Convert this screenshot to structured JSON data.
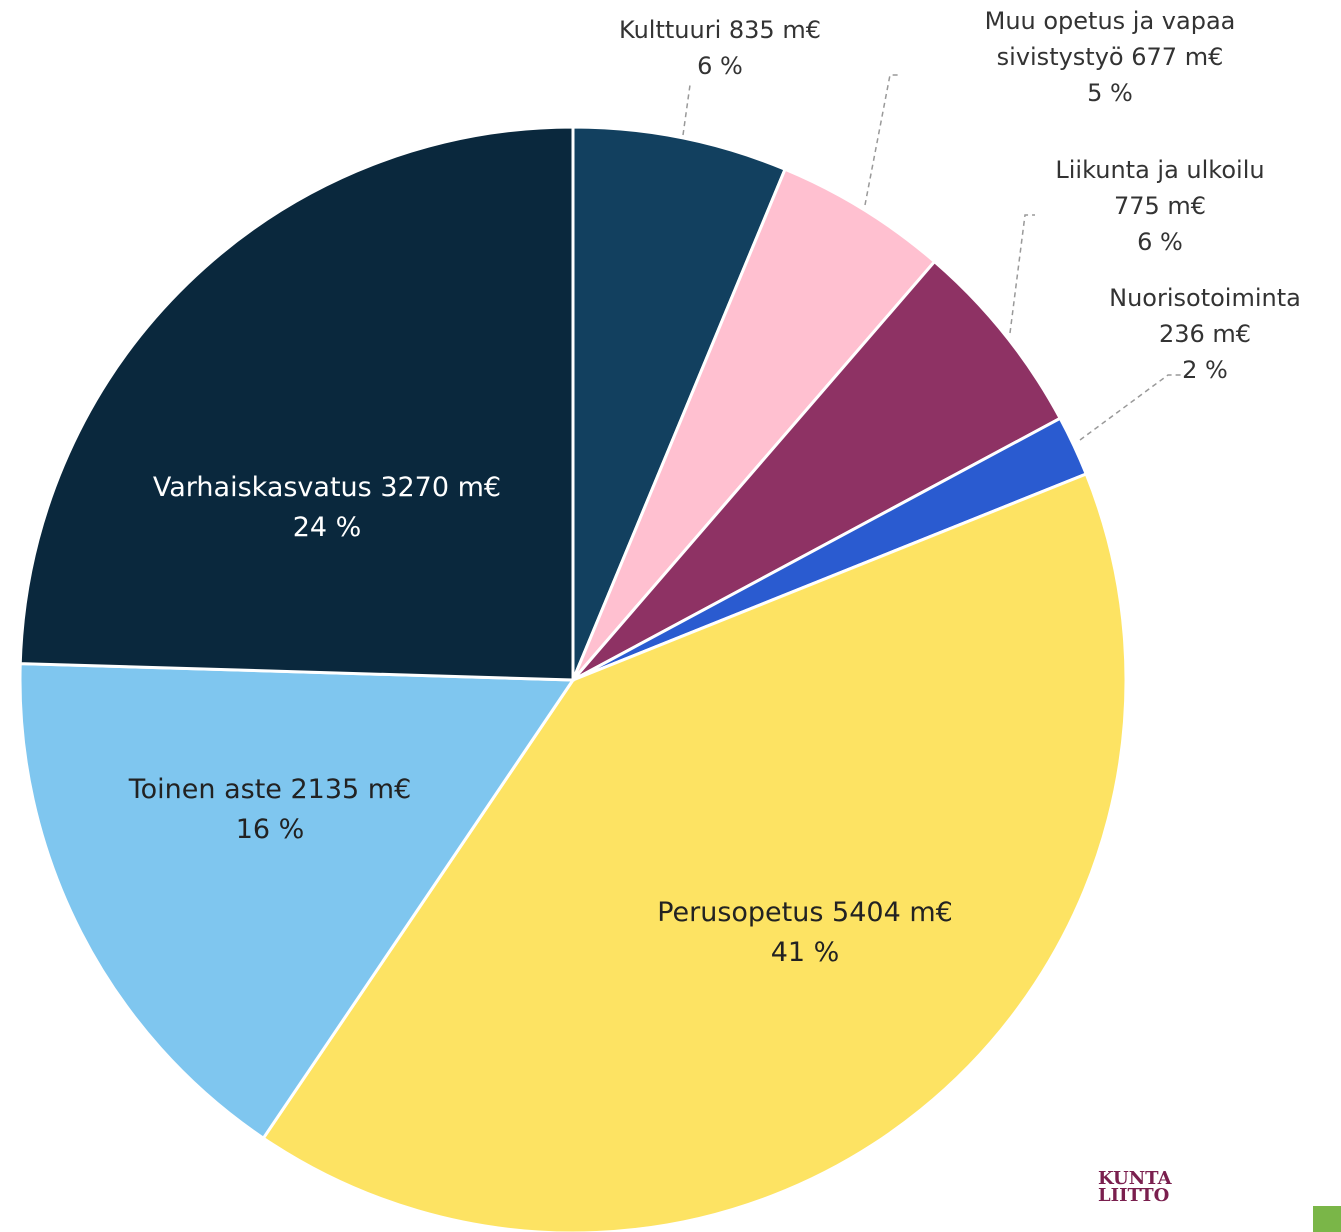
{
  "chart_data": {
    "type": "pie",
    "categories": [
      "Kulttuuri",
      "Muu opetus ja vapaa sivistystyö",
      "Liikunta ja ulkoilu",
      "Nuorisotoiminta",
      "Perusopetus",
      "Toinen aste",
      "Varhaiskasvatus"
    ],
    "values": [
      835,
      677,
      775,
      236,
      5404,
      2135,
      3270
    ],
    "value_labels": [
      "835 m€",
      "677 m€",
      "775 m€",
      "236 m€",
      "5404 m€",
      "2135 m€",
      "3270 m€"
    ],
    "percent_labels": [
      "6 %",
      "5 %",
      "6 %",
      "2 %",
      "41 %",
      "16 %",
      "24 %"
    ],
    "colors": [
      "#12405f",
      "#ffc0d0",
      "#8e3264",
      "#2a5bd0",
      "#fde363",
      "#7fc6ef",
      "#0a283d"
    ]
  },
  "logo_lines": [
    "KUNTA",
    "LIITTO"
  ]
}
